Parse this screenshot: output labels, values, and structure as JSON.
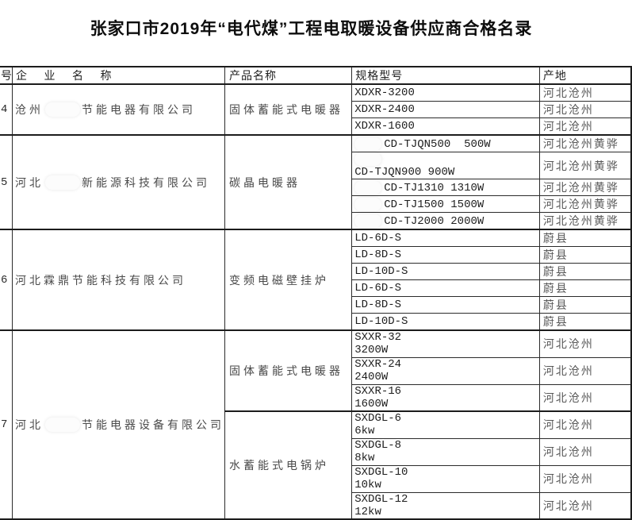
{
  "title": "张家口市2019年“电代煤”工程电取暖设备供应商合格名录",
  "table": {
    "headers": {
      "num": "号",
      "company": "企 业 名 称",
      "product": "产品名称",
      "spec": "规格型号",
      "origin": "产地"
    },
    "groups": [
      {
        "num": "4",
        "company": {
          "prefix": "沧州",
          "redacted": true,
          "suffix": "节能电器有限公司"
        },
        "products": [
          {
            "name": "固体蓄能式电暖器",
            "rows": [
              {
                "lines": [
                  {
                    "redact": false,
                    "text": "XDXR-3200"
                  }
                ],
                "origin": "河北沧州"
              },
              {
                "lines": [
                  {
                    "redact": false,
                    "text": "XDXR-2400"
                  }
                ],
                "origin": "河北沧州"
              },
              {
                "lines": [
                  {
                    "redact": false,
                    "text": "XDXR-1600"
                  }
                ],
                "origin": "河北沧州"
              }
            ]
          }
        ]
      },
      {
        "num": "5",
        "company": {
          "prefix": "河北",
          "redacted": true,
          "suffix": "新能源科技有限公司"
        },
        "products": [
          {
            "name": "碳晶电暖器",
            "rows": [
              {
                "lines": [
                  {
                    "redact": true,
                    "text": "CD-TJQN500  500W"
                  }
                ],
                "origin": "河北沧州黄骅"
              },
              {
                "lines": [
                  {
                    "redact": true,
                    "text": ""
                  },
                  {
                    "redact": false,
                    "text": "CD-TJQN900 900W"
                  }
                ],
                "origin": "河北沧州黄骅"
              },
              {
                "lines": [
                  {
                    "redact": true,
                    "text": "CD-TJ1310 1310W"
                  }
                ],
                "origin": "河北沧州黄骅"
              },
              {
                "lines": [
                  {
                    "redact": true,
                    "text": "CD-TJ1500 1500W"
                  }
                ],
                "origin": "河北沧州黄骅"
              },
              {
                "lines": [
                  {
                    "redact": true,
                    "text": "CD-TJ2000 2000W"
                  }
                ],
                "origin": "河北沧州黄骅"
              }
            ]
          }
        ]
      },
      {
        "num": "6",
        "company": {
          "prefix": "河北霖鼎节能科技有限公司",
          "redacted": false,
          "suffix": ""
        },
        "products": [
          {
            "name": "变频电磁壁挂炉",
            "rows": [
              {
                "lines": [
                  {
                    "redact": false,
                    "text": "LD-6D-S"
                  }
                ],
                "origin": "蔚县"
              },
              {
                "lines": [
                  {
                    "redact": false,
                    "text": "LD-8D-S"
                  }
                ],
                "origin": "蔚县"
              },
              {
                "lines": [
                  {
                    "redact": false,
                    "text": "LD-10D-S"
                  }
                ],
                "origin": "蔚县"
              },
              {
                "lines": [
                  {
                    "redact": false,
                    "text": "LD-6D-S"
                  }
                ],
                "origin": "蔚县"
              },
              {
                "lines": [
                  {
                    "redact": false,
                    "text": "LD-8D-S"
                  }
                ],
                "origin": "蔚县"
              },
              {
                "lines": [
                  {
                    "redact": false,
                    "text": "LD-10D-S"
                  }
                ],
                "origin": "蔚县"
              }
            ]
          }
        ]
      },
      {
        "num": "7",
        "company": {
          "prefix": "河北",
          "redacted": true,
          "suffix": "节能电器设备有限公司"
        },
        "products": [
          {
            "name": "固体蓄能式电暖器",
            "rows": [
              {
                "lines": [
                  {
                    "redact": false,
                    "text": "SXXR-32"
                  },
                  {
                    "redact": false,
                    "text": "3200W"
                  }
                ],
                "origin": "河北沧州"
              },
              {
                "lines": [
                  {
                    "redact": false,
                    "text": "SXXR-24"
                  },
                  {
                    "redact": false,
                    "text": "2400W"
                  }
                ],
                "origin": "河北沧州"
              },
              {
                "lines": [
                  {
                    "redact": false,
                    "text": "SXXR-16"
                  },
                  {
                    "redact": false,
                    "text": "1600W"
                  }
                ],
                "origin": "河北沧州"
              }
            ]
          },
          {
            "name": "水蓄能式电锅炉",
            "rows": [
              {
                "lines": [
                  {
                    "redact": false,
                    "text": "SXDGL-6"
                  },
                  {
                    "redact": false,
                    "text": "6kw"
                  }
                ],
                "origin": "河北沧州"
              },
              {
                "lines": [
                  {
                    "redact": false,
                    "text": "SXDGL-8"
                  },
                  {
                    "redact": false,
                    "text": "8kw"
                  }
                ],
                "origin": "河北沧州"
              },
              {
                "lines": [
                  {
                    "redact": false,
                    "text": "SXDGL-10"
                  },
                  {
                    "redact": false,
                    "text": "10kw"
                  }
                ],
                "origin": "河北沧州"
              },
              {
                "lines": [
                  {
                    "redact": false,
                    "text": "SXDGL-12"
                  },
                  {
                    "redact": false,
                    "text": "12kw"
                  }
                ],
                "origin": "河北沧州"
              }
            ]
          }
        ]
      }
    ]
  }
}
